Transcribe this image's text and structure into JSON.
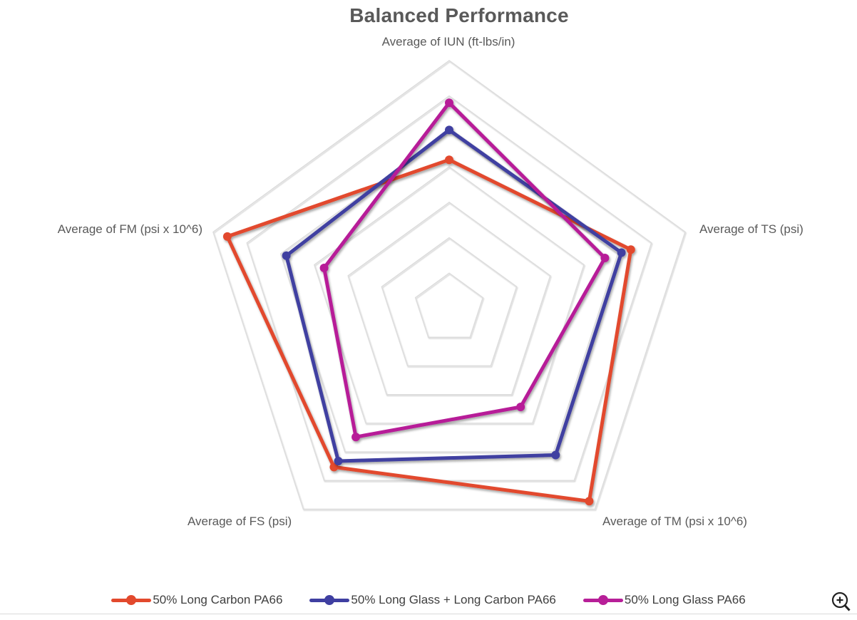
{
  "title": "Balanced Performance",
  "chart_data": {
    "type": "radar",
    "title": "Balanced Performance",
    "categories": [
      "Average of IUN (ft-lbs/in)",
      "Average of TS (psi)",
      "Average of TM (psi x 10^6)",
      "Average of FS (psi)",
      "Average of FM (psi x 10^6)"
    ],
    "series": [
      {
        "name": "50% Long Carbon PA66",
        "color": "#E2492D",
        "values": [
          0.6,
          0.77,
          0.96,
          0.79,
          0.94
        ]
      },
      {
        "name": "50% Long Glass + Long Carbon PA66",
        "color": "#3F3FA1",
        "values": [
          0.72,
          0.73,
          0.73,
          0.76,
          0.69
        ]
      },
      {
        "name": "50% Long Glass PA66",
        "color": "#B71F98",
        "values": [
          0.83,
          0.66,
          0.49,
          0.64,
          0.53
        ]
      }
    ],
    "rmax": 1.0,
    "grid_rings": 7,
    "grid_color": "#DCDCDC",
    "grid_on": true,
    "legend_position": "bottom"
  },
  "legend": {
    "items": [
      "50% Long Carbon PA66",
      "50% Long Glass + Long Carbon PA66",
      "50% Long Glass PA66"
    ]
  },
  "toolbar": {
    "zoom_icon": "zoom-in-icon"
  },
  "colors": {
    "title_text": "#595959",
    "axis_label_text": "#595959",
    "legend_text": "#3F3F3F",
    "grid": "#DCDCDC",
    "separator": "#D9D9D9",
    "icon": "#222222",
    "background": "#FFFFFF"
  }
}
